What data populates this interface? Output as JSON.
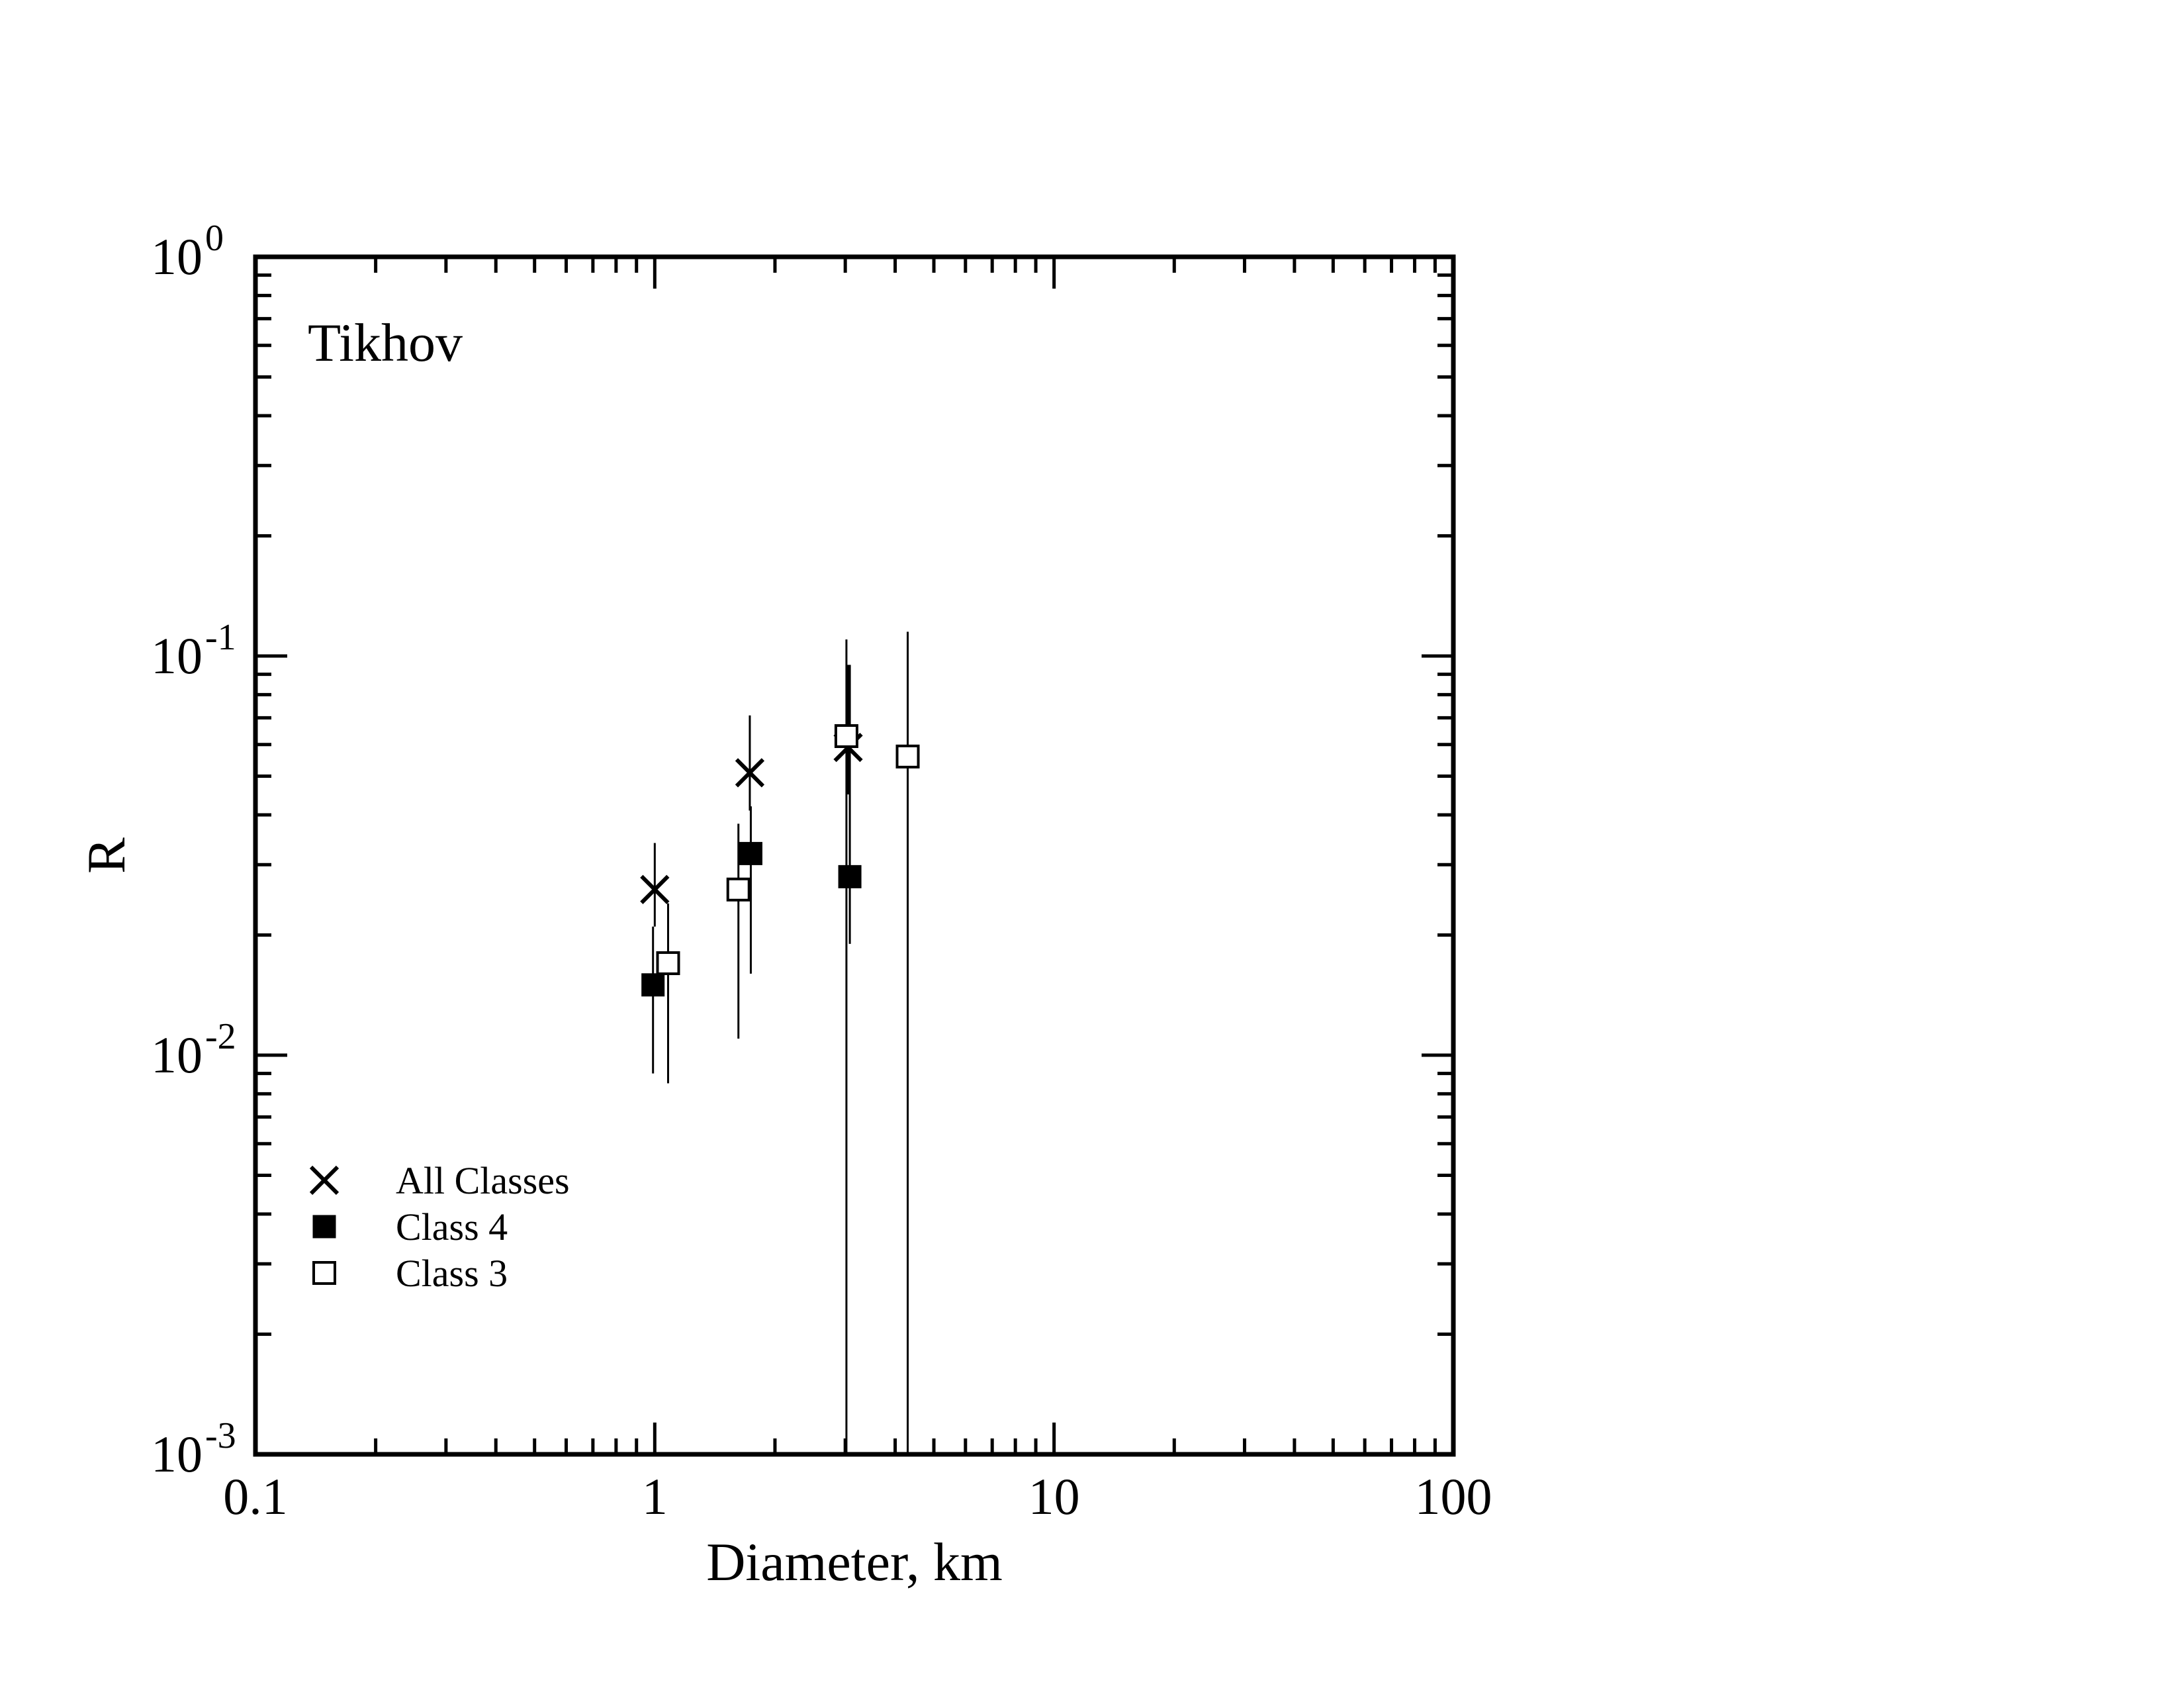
{
  "chart_data": {
    "type": "scatter",
    "title": "",
    "annotation": "Tikhov",
    "xlabel": "Diameter, km",
    "ylabel": "R",
    "xscale": "log",
    "yscale": "log",
    "xlim": [
      0.1,
      100
    ],
    "ylim": [
      0.001,
      1
    ],
    "x_tick_labels": [
      "0.1",
      "1",
      "10",
      "100"
    ],
    "y_tick_labels": [
      {
        "base": "10",
        "exp": "0"
      },
      {
        "base": "10",
        "exp": "-1"
      },
      {
        "base": "10",
        "exp": "-2"
      },
      {
        "base": "10",
        "exp": "-3"
      }
    ],
    "legend_position": "bottom-left",
    "grid": false,
    "series": [
      {
        "name": "All Classes",
        "marker": "x",
        "points": [
          {
            "x": 1.0,
            "y": 0.026,
            "ylo": 0.021,
            "yhi": 0.034
          },
          {
            "x": 1.73,
            "y": 0.051,
            "ylo": 0.041,
            "yhi": 0.071
          },
          {
            "x": 3.05,
            "y": 0.059,
            "ylo": 0.045,
            "yhi": 0.095
          }
        ]
      },
      {
        "name": "Class 4",
        "marker": "filled-square",
        "points": [
          {
            "x": 0.99,
            "y": 0.015,
            "ylo": 0.009,
            "yhi": 0.021
          },
          {
            "x": 1.74,
            "y": 0.032,
            "ylo": 0.016,
            "yhi": 0.042
          },
          {
            "x": 3.08,
            "y": 0.028,
            "ylo": 0.019,
            "yhi": 0.095
          }
        ]
      },
      {
        "name": "Class 3",
        "marker": "open-square",
        "points": [
          {
            "x": 1.08,
            "y": 0.017,
            "ylo": 0.0085,
            "yhi": 0.024
          },
          {
            "x": 1.62,
            "y": 0.026,
            "ylo": 0.011,
            "yhi": 0.038
          },
          {
            "x": 3.02,
            "y": 0.063,
            "ylo": 0.001,
            "yhi": 0.11
          },
          {
            "x": 4.3,
            "y": 0.056,
            "ylo": 0.001,
            "yhi": 0.115
          }
        ]
      }
    ]
  }
}
